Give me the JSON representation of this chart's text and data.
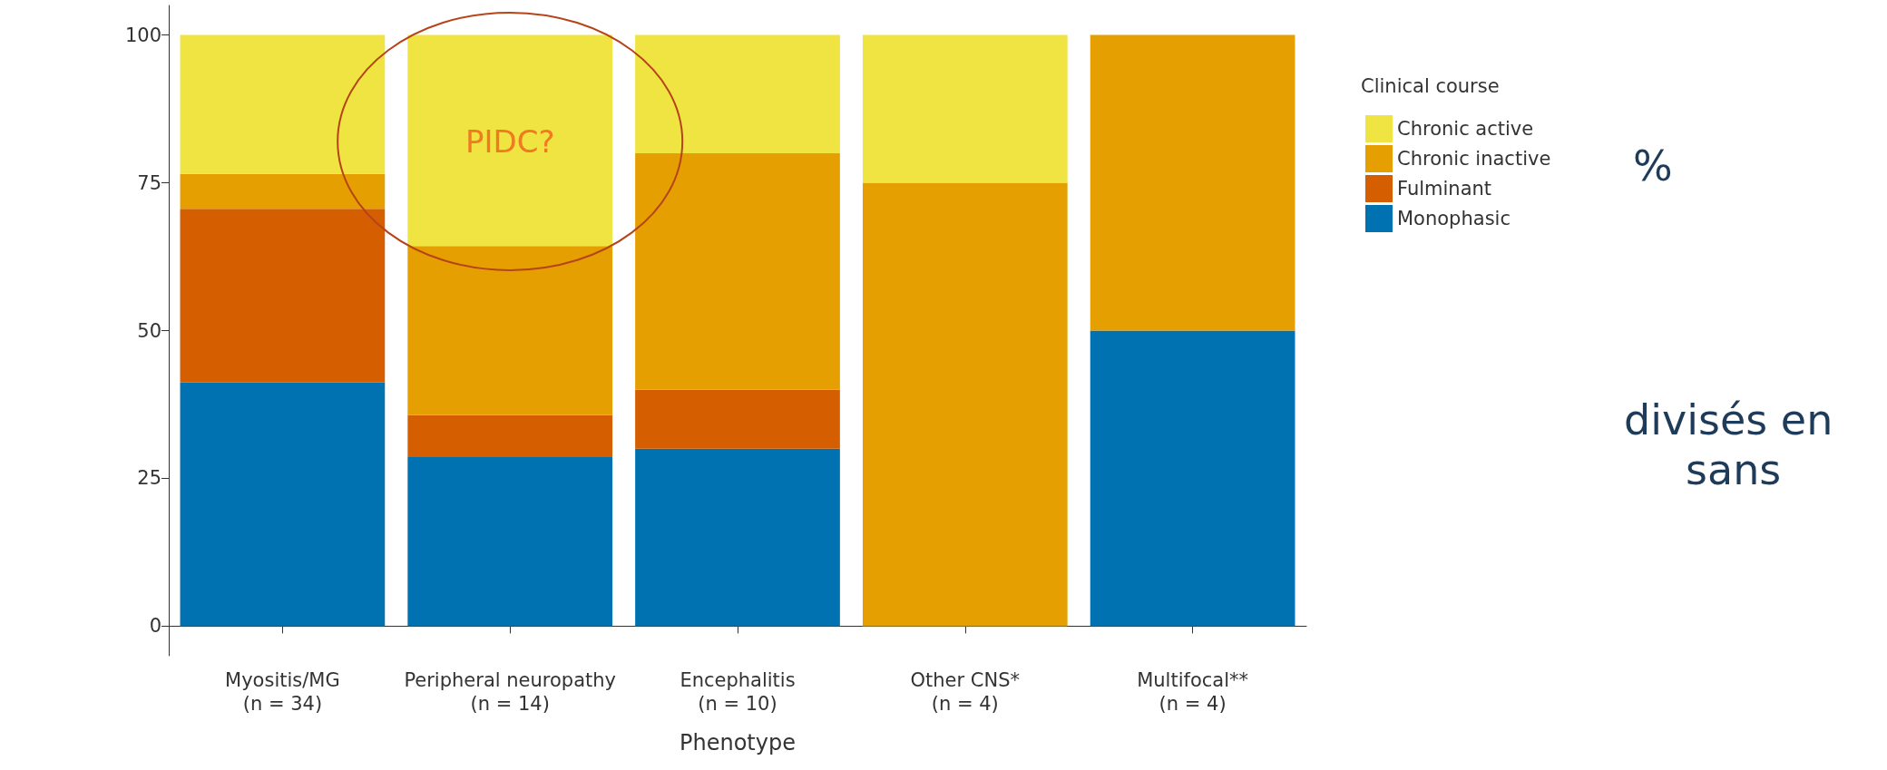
{
  "chart_data": {
    "type": "bar",
    "stacked": true,
    "xlabel": "Phenotype",
    "legend_title": "Clinical course",
    "legend": "right",
    "categories": [
      "Myositis/MG\n(n = 34)",
      "Peripheral neuropathy\n(n = 14)",
      "Encephalitis\n(n = 10)",
      "Other CNS*\n(n = 4)",
      "Multifocal**\n(n = 4)"
    ],
    "series": [
      {
        "name": "Monophasic",
        "color": "#0072b2",
        "values": [
          41.2,
          28.6,
          30,
          0,
          50
        ]
      },
      {
        "name": "Fulminant",
        "color": "#d55e00",
        "values": [
          29.4,
          7.1,
          10,
          0,
          0
        ]
      },
      {
        "name": "Chronic inactive",
        "color": "#e69f00",
        "values": [
          5.9,
          28.6,
          40,
          75,
          50
        ]
      },
      {
        "name": "Chronic active",
        "color": "#f0e442",
        "values": [
          23.5,
          35.7,
          20,
          25,
          0
        ]
      }
    ],
    "ylim": [
      -5,
      105
    ],
    "yticks": [
      0,
      25,
      50,
      75,
      100
    ],
    "grid": false,
    "annotations": [
      "PIDC?",
      "%",
      "divisés en",
      "sans"
    ]
  }
}
